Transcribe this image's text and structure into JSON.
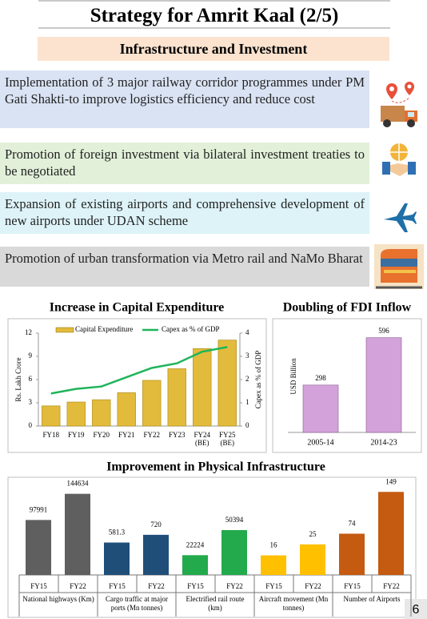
{
  "header": {
    "title": "Strategy for Amrit Kaal (2/5)"
  },
  "section": {
    "title": "Infrastructure and Investment"
  },
  "items": [
    "Implementation of 3 major railway corridor programmes under PM Gati Shakti-to improve logistics efficiency and reduce cost",
    "Promotion of foreign investment via bilateral investment treaties to be negotiated",
    "Expansion of existing airports and comprehensive development of new airports under UDAN scheme",
    "Promotion of urban transformation via Metro rail and NaMo Bharat"
  ],
  "chart_data": [
    {
      "type": "bar",
      "title": "Increase in Capital Expenditure",
      "categories": [
        "FY18",
        "FY19",
        "FY20",
        "FY21",
        "FY22",
        "FY23",
        "FY24 (BE)",
        "FY25 (BE)"
      ],
      "series": [
        {
          "name": "Capital Expenditure",
          "type": "bar",
          "color": "#e3bb3c",
          "values": [
            2.6,
            3.1,
            3.4,
            4.3,
            5.9,
            7.4,
            10.0,
            11.1
          ]
        },
        {
          "name": "Capex as % of GDP",
          "type": "line",
          "color": "#1fb45a",
          "axis": "y2",
          "values": [
            1.4,
            1.6,
            1.7,
            2.1,
            2.5,
            2.7,
            3.2,
            3.4
          ]
        }
      ],
      "ylabel": "Rs. Lakh Crore",
      "y2label": "Capex as % of GDP",
      "ylim": [
        0,
        12
      ],
      "yticks": [
        0,
        3,
        6,
        9,
        12
      ],
      "y2lim": [
        0,
        4
      ],
      "y2ticks": [
        0,
        1,
        2,
        3,
        4
      ],
      "legend": "top"
    },
    {
      "type": "bar",
      "title": "Doubling of FDI Inflow",
      "categories": [
        "2005-14",
        "2014-23"
      ],
      "values": [
        298,
        596
      ],
      "color": "#d4a2da",
      "ylabel": "USD Billion",
      "ylim": [
        0,
        650
      ]
    },
    {
      "type": "grouped-bar",
      "title": "Improvement in Physical Infrastructure",
      "groups": [
        {
          "name": "National highways (Km)",
          "color": "#5f5f5f",
          "categories": [
            "FY15",
            "FY22"
          ],
          "values": [
            97991,
            144634
          ],
          "ylim": [
            0,
            157000
          ]
        },
        {
          "name": "Cargo traffic at major ports (Mn tonnes)",
          "color": "#1f4e79",
          "categories": [
            "FY15",
            "FY22"
          ],
          "values": [
            581.3,
            720
          ],
          "ylim": [
            0,
            1580
          ]
        },
        {
          "name": "Electrified rail route (km)",
          "color": "#22aa4c",
          "categories": [
            "FY15",
            "FY22"
          ],
          "values": [
            22224,
            50394
          ],
          "ylim": [
            0,
            99000
          ]
        },
        {
          "name": "Aircraft movement (Mn tonnes)",
          "color": "#ffc000",
          "categories": [
            "FY15",
            "FY22"
          ],
          "values": [
            16,
            25
          ],
          "ylim": [
            0,
            72
          ]
        },
        {
          "name": "Number of Airports",
          "color": "#c55a11",
          "categories": [
            "FY15",
            "FY22"
          ],
          "values": [
            74,
            149
          ],
          "ylim": [
            0,
            158
          ]
        }
      ]
    }
  ],
  "page_number": 6
}
